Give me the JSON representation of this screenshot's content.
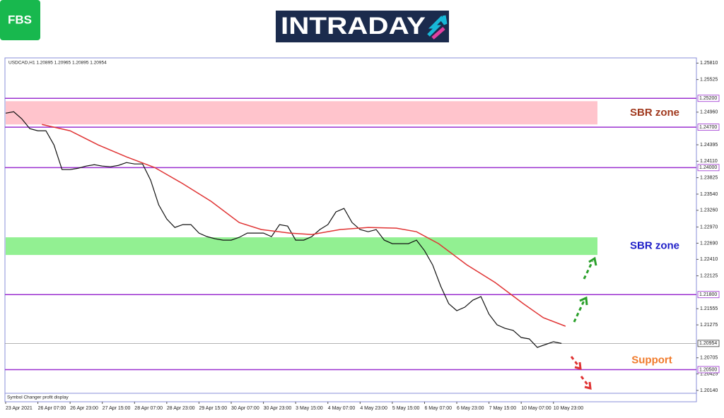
{
  "header": {
    "logo": "FBS",
    "brand": "INTRADAY"
  },
  "chart_data": {
    "type": "line",
    "title": "USDCAD,H1  1.20895 1.20965 1.20895 1.20954",
    "note": "Symbol Changer profit display",
    "xlim": [
      0,
      343
    ],
    "ylim": [
      1.2009,
      1.259
    ],
    "xticks": [
      {
        "value": 0,
        "label": "23 Apr 2021"
      },
      {
        "value": 16,
        "label": "26 Apr 07:00"
      },
      {
        "value": 32,
        "label": "26 Apr 23:00"
      },
      {
        "value": 48,
        "label": "27 Apr 15:00"
      },
      {
        "value": 64,
        "label": "28 Apr 07:00"
      },
      {
        "value": 80,
        "label": "28 Apr 23:00"
      },
      {
        "value": 96,
        "label": "29 Apr 15:00"
      },
      {
        "value": 112,
        "label": "30 Apr 07:00"
      },
      {
        "value": 128,
        "label": "30 Apr 23:00"
      },
      {
        "value": 144,
        "label": "3 May 15:00"
      },
      {
        "value": 160,
        "label": "4 May 07:00"
      },
      {
        "value": 176,
        "label": "4 May 23:00"
      },
      {
        "value": 192,
        "label": "5 May 15:00"
      },
      {
        "value": 208,
        "label": "6 May 07:00"
      },
      {
        "value": 224,
        "label": "6 May 23:00"
      },
      {
        "value": 240,
        "label": "7 May 15:00"
      },
      {
        "value": 256,
        "label": "10 May 07:00"
      },
      {
        "value": 272,
        "label": "10 May 23:00"
      }
    ],
    "yticks": [
      {
        "value": 1.2581,
        "label": "1.25810"
      },
      {
        "value": 1.25525,
        "label": "1.25525"
      },
      {
        "value": 1.2496,
        "label": "1.24960"
      },
      {
        "value": 1.24395,
        "label": "1.24395"
      },
      {
        "value": 1.2411,
        "label": "1.24110"
      },
      {
        "value": 1.23825,
        "label": "1.23825"
      },
      {
        "value": 1.2354,
        "label": "1.23540"
      },
      {
        "value": 1.2326,
        "label": "1.23260"
      },
      {
        "value": 1.2297,
        "label": "1.22970"
      },
      {
        "value": 1.2269,
        "label": "1.22690"
      },
      {
        "value": 1.2241,
        "label": "1.22410"
      },
      {
        "value": 1.22125,
        "label": "1.22125"
      },
      {
        "value": 1.21555,
        "label": "1.21555"
      },
      {
        "value": 1.21275,
        "label": "1.21275"
      },
      {
        "value": 1.20705,
        "label": "1.20705"
      },
      {
        "value": 1.20425,
        "label": "1.20425"
      },
      {
        "value": 1.2014,
        "label": "1.20140"
      }
    ],
    "levels": [
      {
        "value": 1.252,
        "label": "1.25200"
      },
      {
        "value": 1.247,
        "label": "1.24700"
      },
      {
        "value": 1.24,
        "label": "1.24000"
      },
      {
        "value": 1.218,
        "label": "1.21800"
      },
      {
        "value": 1.205,
        "label": "1.20500",
        "annotation": "Support"
      }
    ],
    "level_color": "#9b30d0",
    "last": {
      "value": 1.20954,
      "label": "1.20954"
    },
    "zones": [
      {
        "from": 1.2515,
        "to": 1.24747,
        "color": "#ffc4cc",
        "label": "SBR zone",
        "label_color": "#a0391e"
      },
      {
        "from": 1.22792,
        "to": 1.22486,
        "color": "#92f092",
        "label": "SBR zone",
        "label_color": "#1f1fc8"
      }
    ],
    "annotation_color": "#f07a2a",
    "series": [
      {
        "color": "#111111",
        "x": [
          0,
          4,
          8,
          12,
          16,
          20,
          24,
          28,
          32,
          36,
          40,
          44,
          48,
          52,
          56,
          60,
          64,
          68,
          72,
          76,
          80,
          84,
          88,
          92,
          96,
          100,
          104,
          108,
          112,
          116,
          120,
          124,
          128,
          132,
          136,
          140,
          144,
          148,
          152,
          156,
          160,
          164,
          168,
          172,
          176,
          180,
          184,
          188,
          192,
          196,
          200,
          204,
          208,
          212,
          216,
          220,
          224,
          228,
          232,
          236,
          240,
          244,
          248,
          252,
          256,
          260,
          264,
          268,
          272,
          276
        ],
        "values": [
          1.24942,
          1.24967,
          1.24845,
          1.24674,
          1.24637,
          1.24637,
          1.24392,
          1.23965,
          1.23965,
          1.23989,
          1.24026,
          1.2405,
          1.24026,
          1.24014,
          1.24038,
          1.24087,
          1.24063,
          1.24063,
          1.23781,
          1.23354,
          1.23109,
          1.22963,
          1.23012,
          1.23012,
          1.22865,
          1.22804,
          1.22767,
          1.22743,
          1.22743,
          1.22792,
          1.22865,
          1.22865,
          1.22865,
          1.22804,
          1.23012,
          1.22987,
          1.22743,
          1.22743,
          1.22804,
          1.22926,
          1.23012,
          1.23232,
          1.23293,
          1.23048,
          1.22926,
          1.22889,
          1.22926,
          1.22743,
          1.22682,
          1.22682,
          1.22682,
          1.22743,
          1.2256,
          1.22315,
          1.21948,
          1.21643,
          1.21521,
          1.21582,
          1.21704,
          1.21765,
          1.2146,
          1.21276,
          1.21215,
          1.21179,
          1.21056,
          1.21032,
          1.20885,
          1.20934,
          1.20983,
          1.20954
        ]
      },
      {
        "color": "#e03434",
        "x": [
          18,
          32,
          46,
          60,
          74,
          88,
          102,
          116,
          127,
          141,
          152,
          166,
          180,
          194,
          204,
          215,
          229,
          243,
          257,
          267,
          278
        ],
        "values": [
          1.24747,
          1.24637,
          1.24392,
          1.24185,
          1.24001,
          1.2372,
          1.23415,
          1.23048,
          1.22926,
          1.22865,
          1.2284,
          1.22926,
          1.22963,
          1.2295,
          1.22889,
          1.22682,
          1.22315,
          1.2201,
          1.21643,
          1.21399,
          1.21252
        ]
      }
    ]
  }
}
